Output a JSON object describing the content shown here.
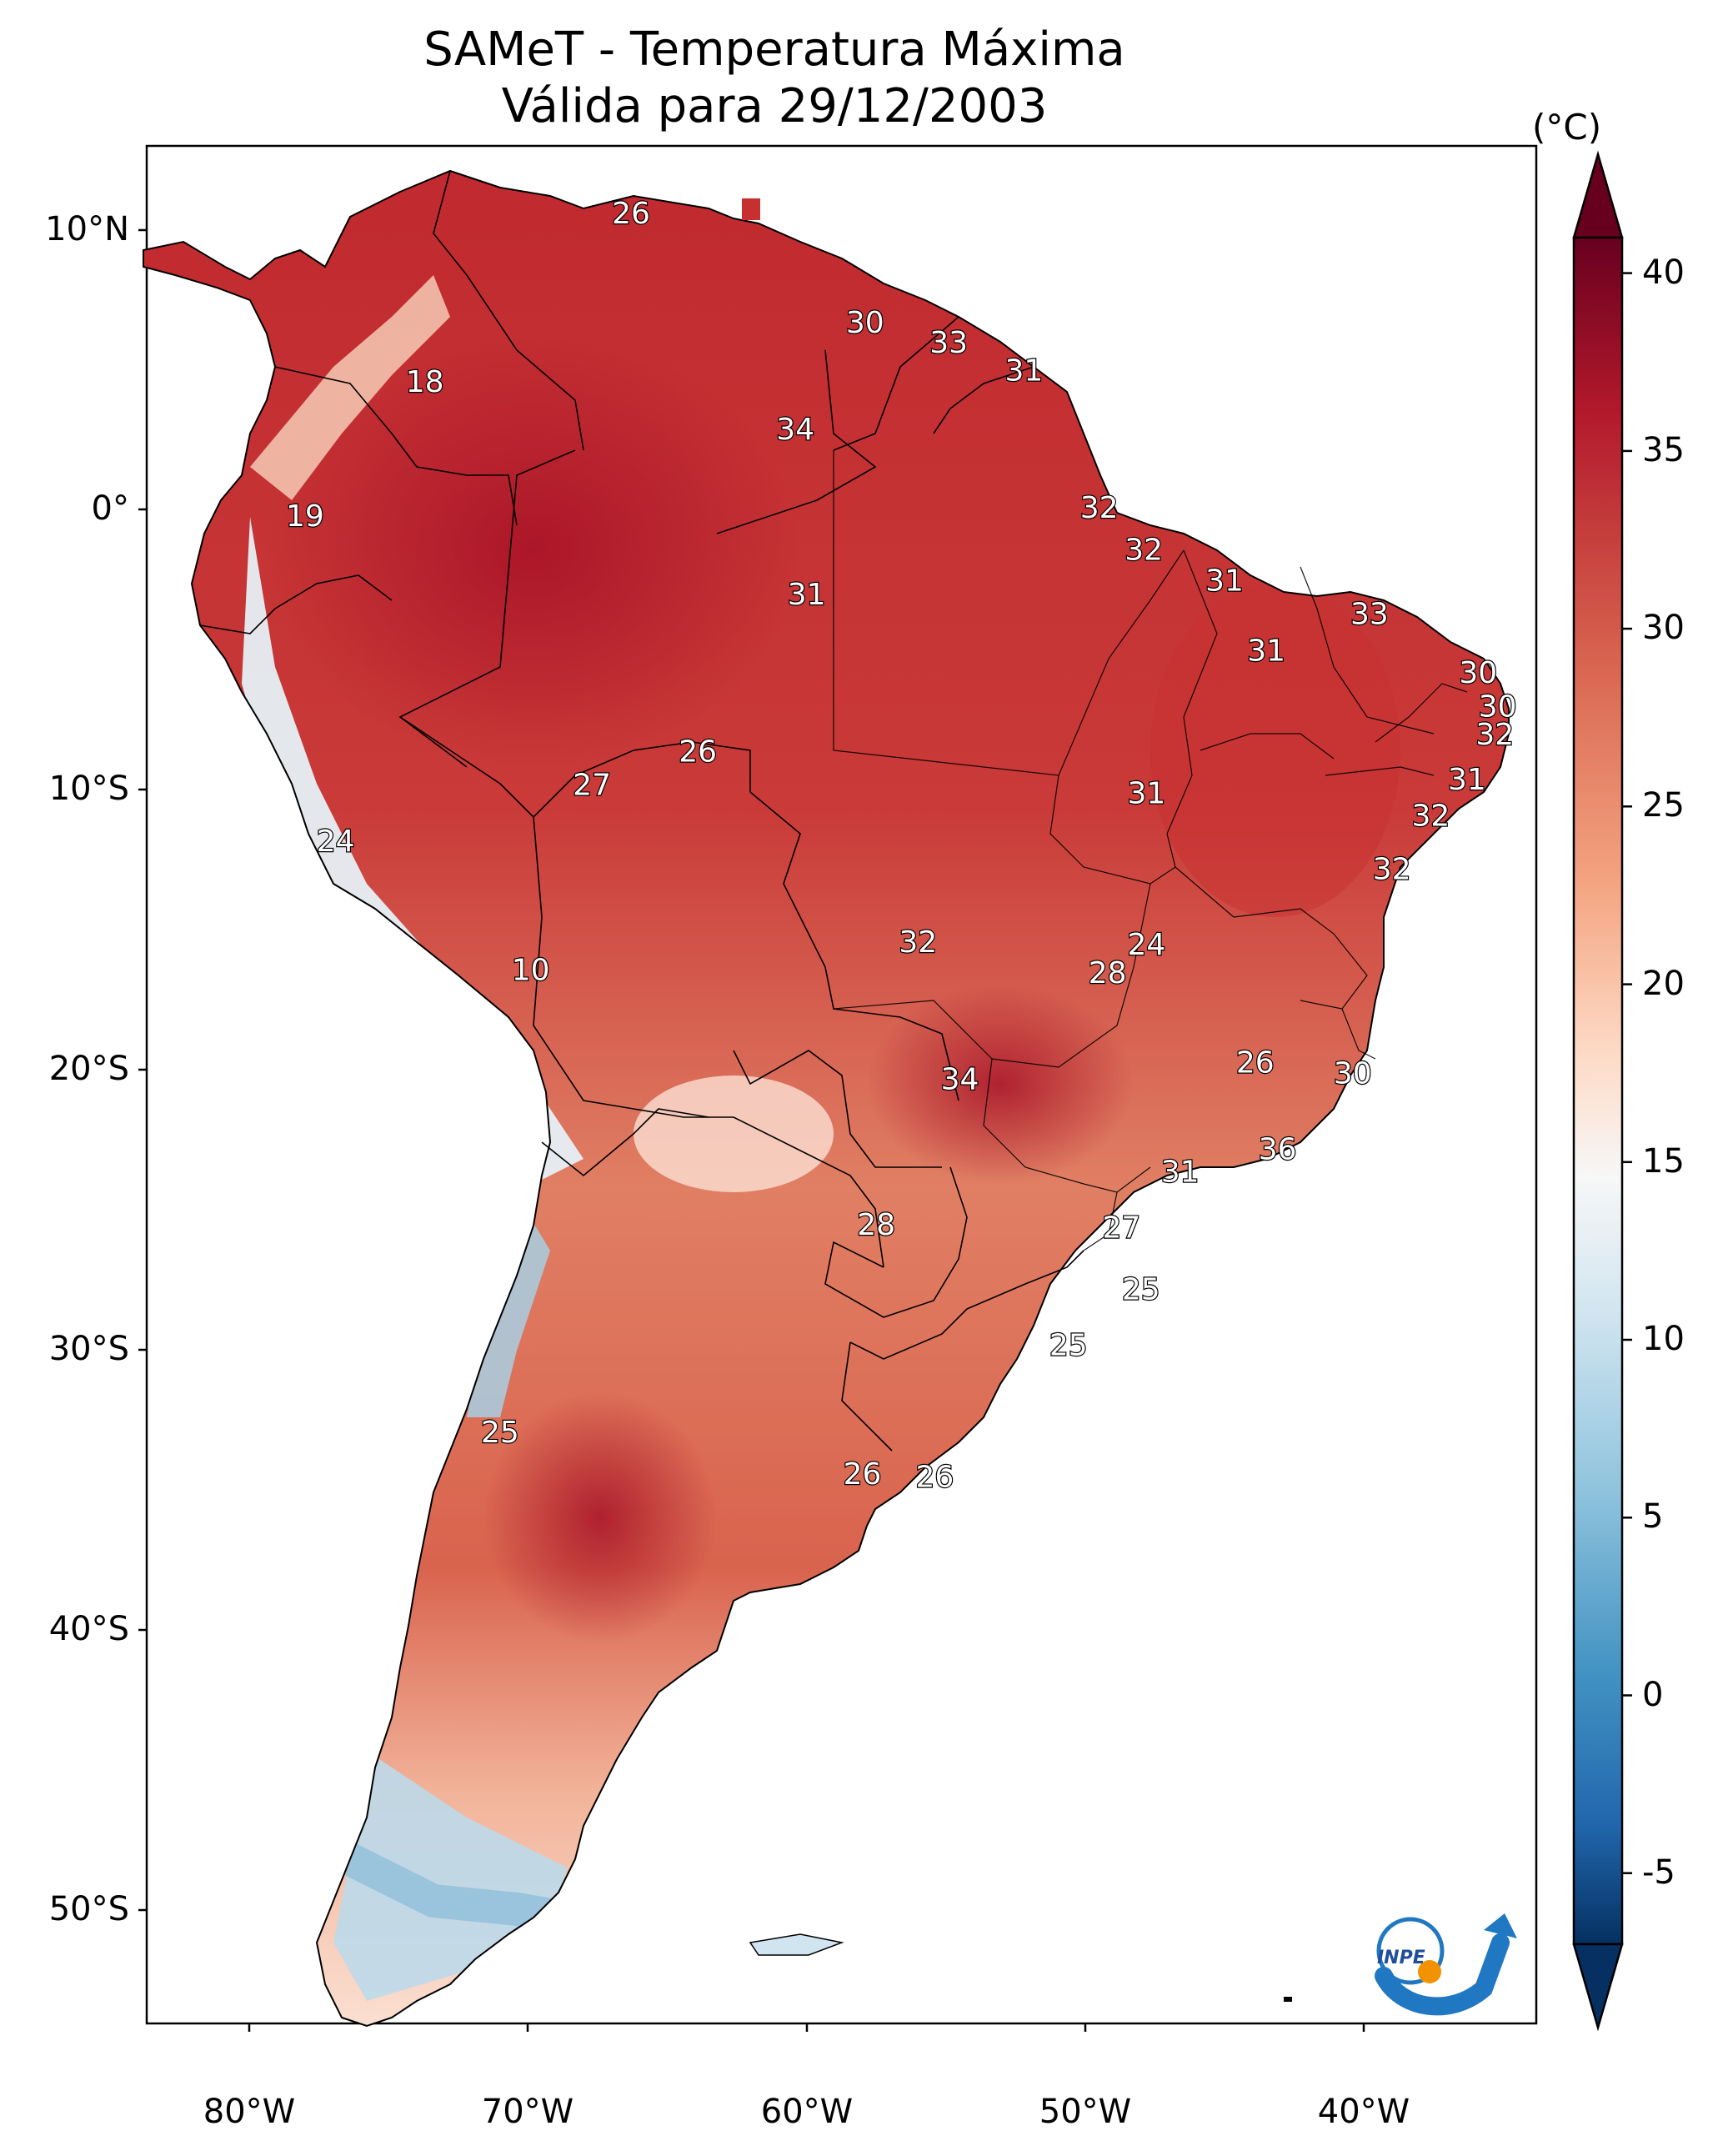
{
  "title": {
    "line1": "SAMeT - Temperatura Máxima",
    "line2": "Válida para 29/12/2003"
  },
  "colorbar": {
    "unit": "(°C)",
    "ticks": [
      "40",
      "35",
      "30",
      "25",
      "20",
      "15",
      "10",
      "5",
      "0",
      "-5"
    ],
    "min": -7,
    "max": 41,
    "colors": {
      "hot": "#67001f",
      "warm": "#d6604d",
      "mild": "#f7f7f7",
      "cool": "#92c5de",
      "cold": "#053061"
    }
  },
  "axes": {
    "lat_labels": [
      "10°N",
      "0°",
      "10°S",
      "20°S",
      "30°S",
      "40°S",
      "50°S"
    ],
    "lon_labels": [
      "80°W",
      "70°W",
      "60°W",
      "50°W",
      "40°W"
    ]
  },
  "contour_labels": [
    {
      "text": "26",
      "lon": -66.3,
      "lat": 10.5
    },
    {
      "text": "18",
      "lon": -73.7,
      "lat": 4.5
    },
    {
      "text": "19",
      "lon": -78.0,
      "lat": -0.3
    },
    {
      "text": "30",
      "lon": -57.9,
      "lat": 6.6
    },
    {
      "text": "33",
      "lon": -54.9,
      "lat": 5.9
    },
    {
      "text": "31",
      "lon": -52.2,
      "lat": 4.9
    },
    {
      "text": "34",
      "lon": -60.4,
      "lat": 2.8
    },
    {
      "text": "32",
      "lon": -49.5,
      "lat": 0.0
    },
    {
      "text": "31",
      "lon": -60.0,
      "lat": -3.1
    },
    {
      "text": "32",
      "lon": -47.9,
      "lat": -1.5
    },
    {
      "text": "31",
      "lon": -45.0,
      "lat": -2.6
    },
    {
      "text": "33",
      "lon": -39.8,
      "lat": -3.8
    },
    {
      "text": "31",
      "lon": -43.5,
      "lat": -5.1
    },
    {
      "text": "30",
      "lon": -35.9,
      "lat": -5.9
    },
    {
      "text": "30",
      "lon": -35.2,
      "lat": -7.1
    },
    {
      "text": "32",
      "lon": -35.3,
      "lat": -8.1
    },
    {
      "text": "31",
      "lon": -36.3,
      "lat": -9.7
    },
    {
      "text": "32",
      "lon": -37.6,
      "lat": -11.0
    },
    {
      "text": "32",
      "lon": -39.0,
      "lat": -12.9
    },
    {
      "text": "26",
      "lon": -63.9,
      "lat": -8.7
    },
    {
      "text": "27",
      "lon": -67.7,
      "lat": -9.9
    },
    {
      "text": "31",
      "lon": -47.8,
      "lat": -10.2
    },
    {
      "text": "24",
      "lon": -76.9,
      "lat": -11.9
    },
    {
      "text": "10",
      "lon": -69.9,
      "lat": -16.5
    },
    {
      "text": "32",
      "lon": -56.0,
      "lat": -15.5
    },
    {
      "text": "24",
      "lon": -47.8,
      "lat": -15.6
    },
    {
      "text": "28",
      "lon": -49.2,
      "lat": -16.6
    },
    {
      "text": "26",
      "lon": -43.9,
      "lat": -19.8
    },
    {
      "text": "30",
      "lon": -40.4,
      "lat": -20.2
    },
    {
      "text": "34",
      "lon": -54.5,
      "lat": -20.4
    },
    {
      "text": "36",
      "lon": -43.1,
      "lat": -22.9
    },
    {
      "text": "31",
      "lon": -46.6,
      "lat": -23.7
    },
    {
      "text": "28",
      "lon": -57.5,
      "lat": -25.6
    },
    {
      "text": "27",
      "lon": -48.7,
      "lat": -25.7
    },
    {
      "text": "25",
      "lon": -48.0,
      "lat": -27.9
    },
    {
      "text": "25",
      "lon": -50.6,
      "lat": -29.9
    },
    {
      "text": "25",
      "lon": -71.0,
      "lat": -33.0
    },
    {
      "text": "26",
      "lon": -58.0,
      "lat": -34.5
    },
    {
      "text": "26",
      "lon": -55.4,
      "lat": -34.6
    }
  ]
}
